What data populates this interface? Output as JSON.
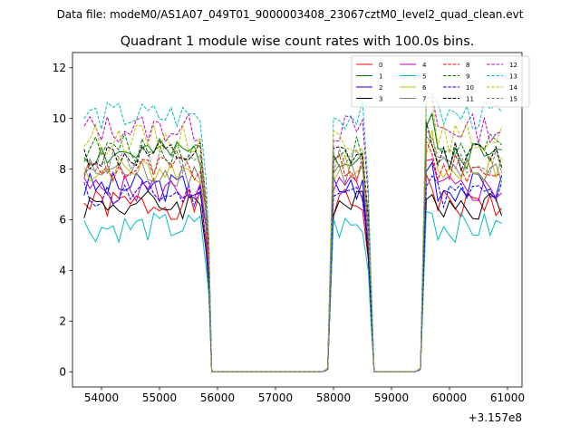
{
  "figure": {
    "suptitle": "Data file: modeM0/AS1A07_049T01_9000003408_23067cztM0_level2_quad_clean.evt"
  },
  "chart_data": {
    "type": "line",
    "title": "Quadrant 1 module wise count rates with 100.0s bins.",
    "xlabel": "",
    "ylabel": "",
    "x_offset_label": "+3.157e8",
    "xlim": [
      53500,
      61250
    ],
    "ylim": [
      -0.6,
      12.6
    ],
    "xticks": [
      54000,
      55000,
      56000,
      57000,
      58000,
      59000,
      60000,
      61000
    ],
    "xtick_labels": [
      "54000",
      "55000",
      "56000",
      "57000",
      "58000",
      "59000",
      "60000",
      "61000"
    ],
    "yticks": [
      0,
      2,
      4,
      6,
      8,
      10,
      12
    ],
    "ytick_labels": [
      "0",
      "2",
      "4",
      "6",
      "8",
      "10",
      "12"
    ],
    "legend_position": "top-right",
    "legend_columns": 4,
    "segments": [
      {
        "start": 53700,
        "end": 55700,
        "step": 100
      },
      {
        "start": 55800,
        "end": 55850,
        "step": 50
      },
      {
        "start": 55900,
        "end": 57800,
        "step": 100
      },
      {
        "start": 57850,
        "end": 57900,
        "step": 50
      },
      {
        "start": 58000,
        "end": 58500,
        "step": 100
      },
      {
        "start": 58600,
        "end": 58650,
        "step": 50
      },
      {
        "start": 58700,
        "end": 59400,
        "step": 100
      },
      {
        "start": 59480,
        "end": 59500,
        "step": 20
      },
      {
        "start": 59600,
        "end": 60900,
        "step": 100
      }
    ],
    "series": [
      {
        "name": "0",
        "color": "#ff0000",
        "dash": false,
        "base": 6.6,
        "seed": 1
      },
      {
        "name": "1",
        "color": "#008000",
        "dash": false,
        "base": 8.6,
        "seed": 2
      },
      {
        "name": "2",
        "color": "#0000ff",
        "dash": false,
        "base": 7.3,
        "seed": 3
      },
      {
        "name": "3",
        "color": "#000000",
        "dash": false,
        "base": 6.6,
        "seed": 4
      },
      {
        "name": "4",
        "color": "#bf00bf",
        "dash": false,
        "base": 7.2,
        "seed": 5
      },
      {
        "name": "5",
        "color": "#00bfbf",
        "dash": false,
        "base": 5.7,
        "seed": 6
      },
      {
        "name": "6",
        "color": "#bfbf00",
        "dash": false,
        "base": 8.0,
        "seed": 7
      },
      {
        "name": "7",
        "color": "#808080",
        "dash": false,
        "base": 7.9,
        "seed": 8
      },
      {
        "name": "8",
        "color": "#ff0000",
        "dash": true,
        "base": 8.0,
        "seed": 9
      },
      {
        "name": "9",
        "color": "#008000",
        "dash": true,
        "base": 8.8,
        "seed": 10
      },
      {
        "name": "10",
        "color": "#0000ff",
        "dash": true,
        "base": 7.0,
        "seed": 11
      },
      {
        "name": "11",
        "color": "#000000",
        "dash": true,
        "base": 8.5,
        "seed": 12
      },
      {
        "name": "12",
        "color": "#bf00bf",
        "dash": true,
        "base": 9.6,
        "seed": 13
      },
      {
        "name": "13",
        "color": "#00bfbf",
        "dash": true,
        "base": 10.1,
        "seed": 14
      },
      {
        "name": "14",
        "color": "#bfbf00",
        "dash": true,
        "base": 9.2,
        "seed": 15
      },
      {
        "name": "15",
        "color": "#808080",
        "dash": true,
        "base": 8.3,
        "seed": 16
      }
    ]
  }
}
